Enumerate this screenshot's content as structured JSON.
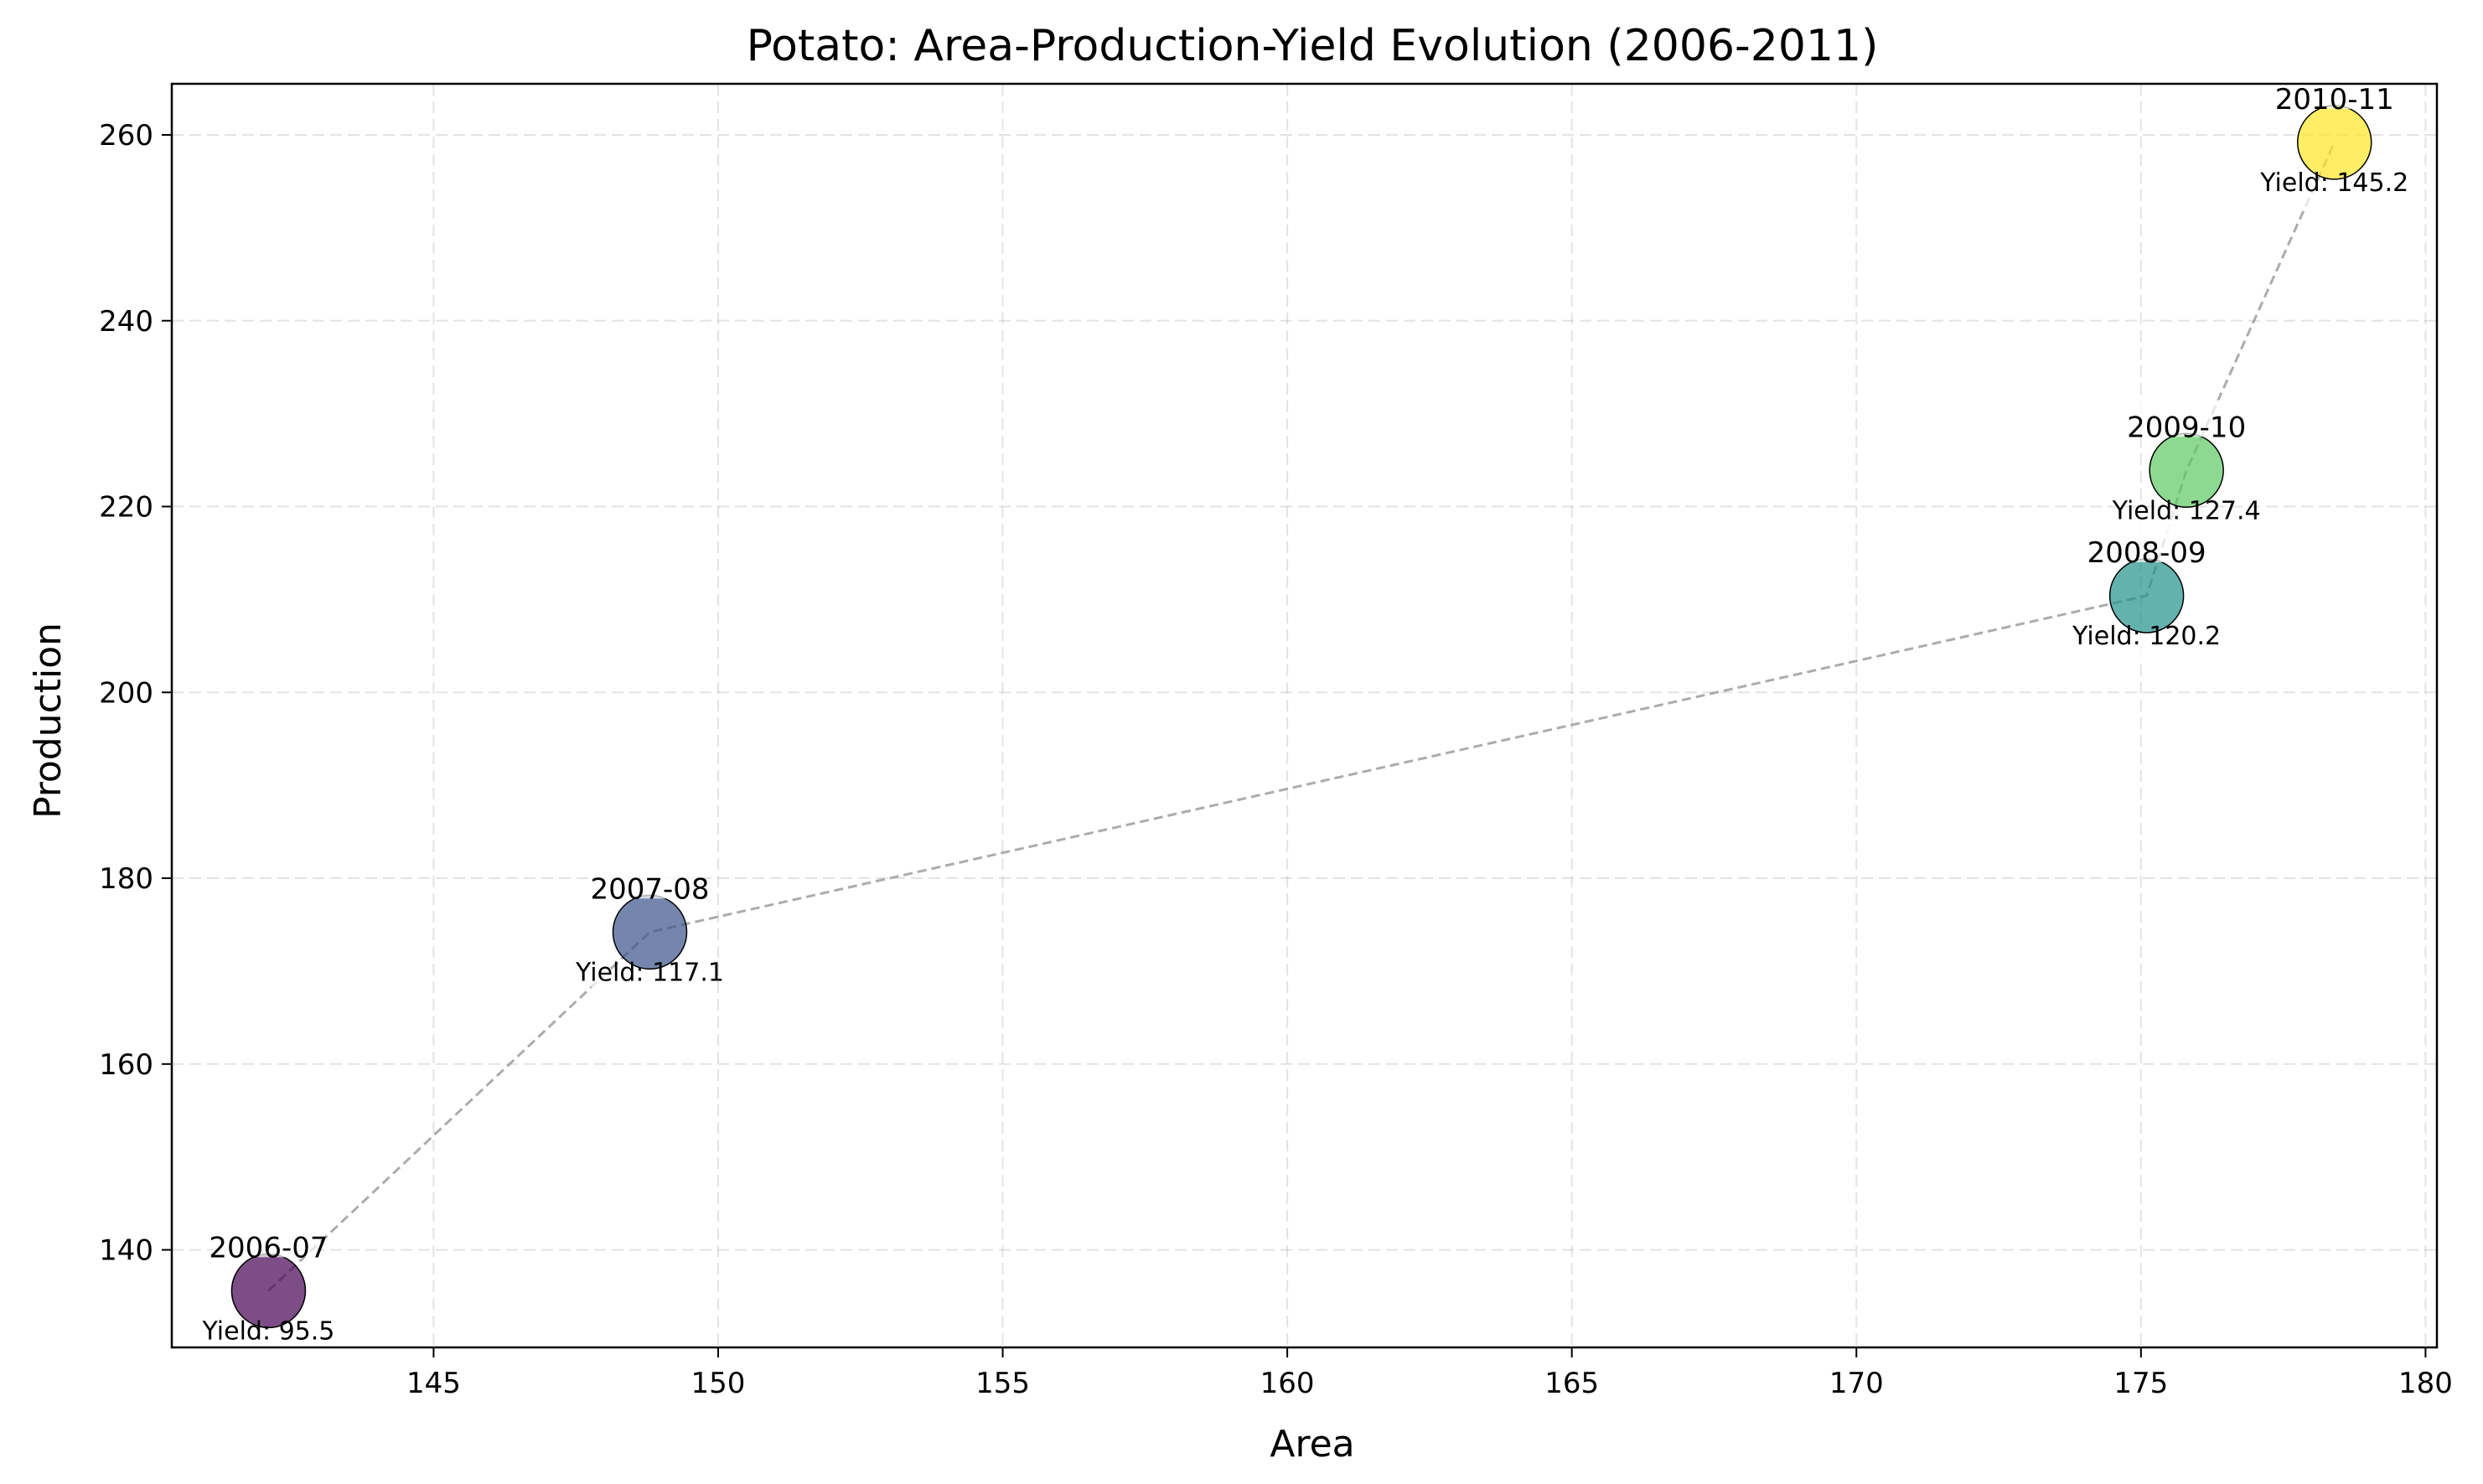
{
  "chart_data": {
    "type": "scatter",
    "title": "Potato: Area-Production-Yield Evolution (2006-2011)",
    "xlabel": "Area",
    "ylabel": "Production",
    "xlim": [
      140.4,
      180.2
    ],
    "ylim": [
      129.5,
      265.5
    ],
    "xticks": [
      145,
      150,
      155,
      160,
      165,
      170,
      175,
      180
    ],
    "yticks": [
      140,
      160,
      180,
      200,
      220,
      240,
      260
    ],
    "grid": true,
    "connect_points": "dashed-gray",
    "points": [
      {
        "label": "2006-07",
        "x": 142.1,
        "y": 135.6,
        "yield": 95.5,
        "yield_text": "Yield: 95.5",
        "color": "#440154"
      },
      {
        "label": "2007-08",
        "x": 148.8,
        "y": 174.2,
        "yield": 117.1,
        "yield_text": "Yield: 117.1",
        "color": "#3b528b"
      },
      {
        "label": "2008-09",
        "x": 175.1,
        "y": 210.4,
        "yield": 120.2,
        "yield_text": "Yield: 120.2",
        "color": "#21918c"
      },
      {
        "label": "2009-10",
        "x": 175.8,
        "y": 223.9,
        "yield": 127.4,
        "yield_text": "Yield: 127.4",
        "color": "#5ec962"
      },
      {
        "label": "2010-11",
        "x": 178.4,
        "y": 259.2,
        "yield": 145.2,
        "yield_text": "Yield: 145.2",
        "color": "#fde725"
      }
    ]
  }
}
